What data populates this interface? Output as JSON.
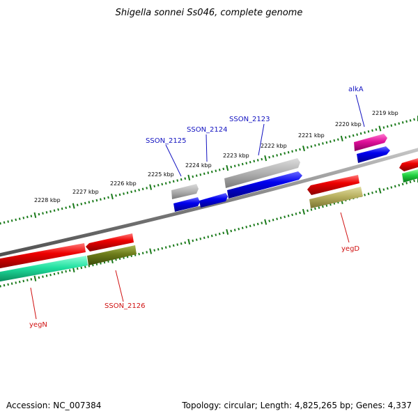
{
  "title": "Shigella sonnei Ss046, complete genome",
  "footer": {
    "accession": "Accession: NC_007384",
    "stats": "Topology: circular; Length: 4,825,265 bp; Genes: 4,337"
  },
  "ticks": [
    {
      "label": "2219 kbp"
    },
    {
      "label": "2220 kbp"
    },
    {
      "label": "2221 kbp"
    },
    {
      "label": "2222 kbp"
    },
    {
      "label": "2223 kbp"
    },
    {
      "label": "2224 kbp"
    },
    {
      "label": "2225 kbp"
    },
    {
      "label": "2226 kbp"
    },
    {
      "label": "2227 kbp"
    },
    {
      "label": "2228 kbp"
    }
  ],
  "genes_forward": [
    {
      "name": "alkA",
      "color": "#1010c0"
    },
    {
      "name": "SSON_2123",
      "color": "#1010c0"
    },
    {
      "name": "SSON_2124",
      "color": "#1010c0"
    },
    {
      "name": "SSON_2125",
      "color": "#1010c0"
    }
  ],
  "genes_reverse": [
    {
      "name": "yegD",
      "color": "#d01010"
    },
    {
      "name": "SSON_2126",
      "color": "#d01010"
    },
    {
      "name": "yegN",
      "color": "#d01010"
    }
  ],
  "colors": {
    "backbone": "#888888",
    "tick": "#1a7a1a",
    "cds_forward": "#0000ee",
    "cds_reverse": "#ee0000",
    "rna": "#aaaaaa",
    "magenta": "#e0109a",
    "olive": "#6b7a1a",
    "khaki": "#b8b060",
    "spring": "#20e0a0",
    "green": "#20d040"
  }
}
